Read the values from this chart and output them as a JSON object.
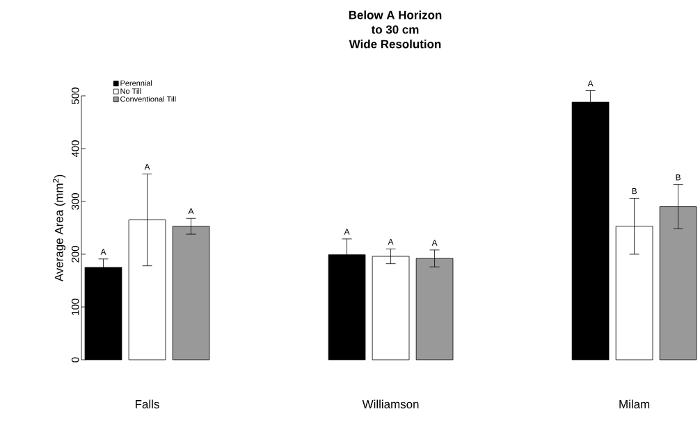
{
  "chart_data": {
    "type": "bar",
    "title": "Below A Horizon\nto 30 cm\nWide Resolution",
    "ylabel": "Average Area (mm$^{2}$)",
    "categories": [
      "Falls",
      "Williamson",
      "Milam"
    ],
    "series": [
      {
        "name": "Perennial",
        "color": "#000000",
        "values": [
          175,
          199,
          488
        ],
        "errors": [
          16,
          30,
          22
        ]
      },
      {
        "name": "No Till",
        "color": "#ffffff",
        "values": [
          265,
          196,
          253
        ],
        "errors": [
          87,
          14,
          53
        ]
      },
      {
        "name": "Conventional Till",
        "color": "#999999",
        "values": [
          253,
          192,
          290
        ],
        "errors": [
          15,
          16,
          42
        ]
      }
    ],
    "ylim": [
      0,
      500
    ],
    "yticks": [
      0,
      100,
      200,
      300,
      400,
      500
    ],
    "legend": "top left",
    "annotations": [
      "A",
      "A",
      "A",
      "A",
      "A",
      "A",
      "A",
      "B",
      "B"
    ]
  }
}
